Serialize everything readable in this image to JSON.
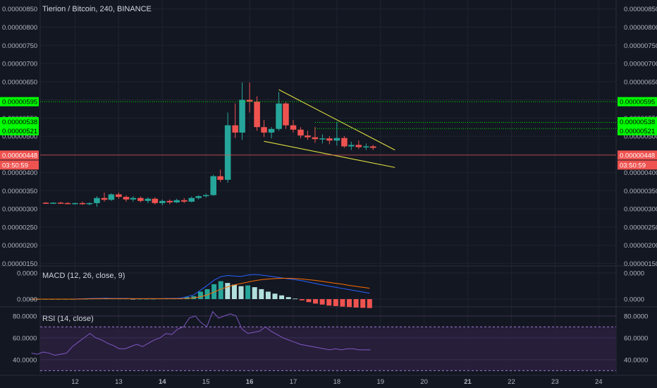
{
  "header": {
    "title": "Tierion / Bitcoin, 240, BINANCE"
  },
  "colors": {
    "background": "#131722",
    "grid": "#1f2330",
    "bullish": "#26a69a",
    "bearish": "#ef5350",
    "wedge": "#e0e040",
    "level_line": "#00e600",
    "level_tag": "#00ff00",
    "price_tag": "#ef5350",
    "macd_line": "#2962ff",
    "signal_line": "#ff6d00",
    "rsi_line": "#7e57c2",
    "rsi_band": "#2a1f3d"
  },
  "tags": {
    "levels": [
      "0.00000595",
      "0.00000538",
      "0.00000521"
    ],
    "price": "0.00000448",
    "countdown": "03:50:59"
  },
  "chart_data": [
    {
      "type": "candlestick",
      "title": "Tierion / Bitcoin, 240, BINANCE",
      "x_ticks": [
        "12",
        "13",
        "14",
        "15",
        "16",
        "17",
        "18",
        "19",
        "20",
        "21",
        "22",
        "23",
        "24"
      ],
      "y_ticks": [
        "0.00000850",
        "0.00000800",
        "0.00000750",
        "0.00000700",
        "0.00000650",
        "0.00000600",
        "0.00000550",
        "0.00000500",
        "0.00000450",
        "0.00000400",
        "0.00000350",
        "0.00000300",
        "0.00000250",
        "0.00000200",
        "0.00000150"
      ],
      "ylim": [
        1.45e-06,
        8.65e-06
      ],
      "x_range_days": [
        11.2,
        24.4
      ],
      "horizontal_levels": [
        5.95e-06,
        5.38e-06,
        5.21e-06
      ],
      "last_price": 4.48e-06,
      "ohlc": [
        {
          "t": 11.33,
          "o": 3.17e-06,
          "h": 3.19e-06,
          "l": 3.14e-06,
          "c": 3.16e-06
        },
        {
          "t": 11.5,
          "o": 3.16e-06,
          "h": 3.18e-06,
          "l": 3.14e-06,
          "c": 3.17e-06
        },
        {
          "t": 11.67,
          "o": 3.17e-06,
          "h": 3.2e-06,
          "l": 3.15e-06,
          "c": 3.16e-06
        },
        {
          "t": 11.83,
          "o": 3.16e-06,
          "h": 3.19e-06,
          "l": 3.13e-06,
          "c": 3.14e-06
        },
        {
          "t": 12.0,
          "o": 3.14e-06,
          "h": 3.17e-06,
          "l": 3.12e-06,
          "c": 3.16e-06
        },
        {
          "t": 12.17,
          "o": 3.16e-06,
          "h": 3.2e-06,
          "l": 3.11e-06,
          "c": 3.13e-06
        },
        {
          "t": 12.33,
          "o": 3.13e-06,
          "h": 3.18e-06,
          "l": 3.1e-06,
          "c": 3.16e-06
        },
        {
          "t": 12.5,
          "o": 3.16e-06,
          "h": 3.35e-06,
          "l": 3.06e-06,
          "c": 3.3e-06
        },
        {
          "t": 12.67,
          "o": 3.3e-06,
          "h": 3.45e-06,
          "l": 3.2e-06,
          "c": 3.25e-06
        },
        {
          "t": 12.83,
          "o": 3.25e-06,
          "h": 3.43e-06,
          "l": 3.22e-06,
          "c": 3.4e-06
        },
        {
          "t": 13.0,
          "o": 3.4e-06,
          "h": 3.45e-06,
          "l": 3.28e-06,
          "c": 3.33e-06
        },
        {
          "t": 13.17,
          "o": 3.33e-06,
          "h": 3.37e-06,
          "l": 3.2e-06,
          "c": 3.26e-06
        },
        {
          "t": 13.33,
          "o": 3.26e-06,
          "h": 3.35e-06,
          "l": 3.2e-06,
          "c": 3.3e-06
        },
        {
          "t": 13.5,
          "o": 3.3e-06,
          "h": 3.34e-06,
          "l": 3.18e-06,
          "c": 3.22e-06
        },
        {
          "t": 13.67,
          "o": 3.22e-06,
          "h": 3.32e-06,
          "l": 3.16e-06,
          "c": 3.28e-06
        },
        {
          "t": 13.83,
          "o": 3.28e-06,
          "h": 3.32e-06,
          "l": 3.12e-06,
          "c": 3.16e-06
        },
        {
          "t": 14.0,
          "o": 3.16e-06,
          "h": 3.26e-06,
          "l": 3.1e-06,
          "c": 3.22e-06
        },
        {
          "t": 14.17,
          "o": 3.22e-06,
          "h": 3.26e-06,
          "l": 3.13e-06,
          "c": 3.18e-06
        },
        {
          "t": 14.33,
          "o": 3.18e-06,
          "h": 3.28e-06,
          "l": 3.16e-06,
          "c": 3.24e-06
        },
        {
          "t": 14.5,
          "o": 3.24e-06,
          "h": 3.3e-06,
          "l": 3.16e-06,
          "c": 3.2e-06
        },
        {
          "t": 14.67,
          "o": 3.2e-06,
          "h": 3.34e-06,
          "l": 3.18e-06,
          "c": 3.3e-06
        },
        {
          "t": 14.83,
          "o": 3.3e-06,
          "h": 3.38e-06,
          "l": 3.26e-06,
          "c": 3.35e-06
        },
        {
          "t": 15.0,
          "o": 3.35e-06,
          "h": 3.42e-06,
          "l": 3.31e-06,
          "c": 3.38e-06
        },
        {
          "t": 15.17,
          "o": 3.38e-06,
          "h": 3.94e-06,
          "l": 3.36e-06,
          "c": 3.9e-06
        },
        {
          "t": 15.33,
          "o": 3.9e-06,
          "h": 4.08e-06,
          "l": 3.74e-06,
          "c": 3.8e-06
        },
        {
          "t": 15.5,
          "o": 3.8e-06,
          "h": 5.65e-06,
          "l": 3.72e-06,
          "c": 5.3e-06
        },
        {
          "t": 15.67,
          "o": 5.3e-06,
          "h": 5.9e-06,
          "l": 4.95e-06,
          "c": 5.1e-06
        },
        {
          "t": 15.83,
          "o": 5.1e-06,
          "h": 6.48e-06,
          "l": 4.9e-06,
          "c": 6e-06
        },
        {
          "t": 16.0,
          "o": 6e-06,
          "h": 6.48e-06,
          "l": 5.65e-06,
          "c": 5.95e-06
        },
        {
          "t": 16.17,
          "o": 5.95e-06,
          "h": 6.1e-06,
          "l": 5.15e-06,
          "c": 5.25e-06
        },
        {
          "t": 16.33,
          "o": 5.25e-06,
          "h": 5.45e-06,
          "l": 4.98e-06,
          "c": 5.1e-06
        },
        {
          "t": 16.5,
          "o": 5.1e-06,
          "h": 5.25e-06,
          "l": 4.94e-06,
          "c": 5.2e-06
        },
        {
          "t": 16.67,
          "o": 5.2e-06,
          "h": 6.22e-06,
          "l": 5.15e-06,
          "c": 5.9e-06
        },
        {
          "t": 16.83,
          "o": 5.9e-06,
          "h": 5.95e-06,
          "l": 5.2e-06,
          "c": 5.3e-06
        },
        {
          "t": 17.0,
          "o": 5.3e-06,
          "h": 5.45e-06,
          "l": 5.1e-06,
          "c": 5.18e-06
        },
        {
          "t": 17.17,
          "o": 5.18e-06,
          "h": 5.25e-06,
          "l": 4.95e-06,
          "c": 5.02e-06
        },
        {
          "t": 17.33,
          "o": 5.02e-06,
          "h": 5.15e-06,
          "l": 4.9e-06,
          "c": 4.97e-06
        },
        {
          "t": 17.5,
          "o": 4.97e-06,
          "h": 5.25e-06,
          "l": 4.82e-06,
          "c": 4.92e-06
        },
        {
          "t": 17.67,
          "o": 4.92e-06,
          "h": 5.05e-06,
          "l": 4.8e-06,
          "c": 4.94e-06
        },
        {
          "t": 17.83,
          "o": 4.94e-06,
          "h": 5e-06,
          "l": 4.78e-06,
          "c": 4.88e-06
        },
        {
          "t": 18.0,
          "o": 4.88e-06,
          "h": 5.4e-06,
          "l": 4.74e-06,
          "c": 4.95e-06
        },
        {
          "t": 18.17,
          "o": 4.95e-06,
          "h": 5e-06,
          "l": 4.68e-06,
          "c": 4.72e-06
        },
        {
          "t": 18.33,
          "o": 4.72e-06,
          "h": 4.85e-06,
          "l": 4.62e-06,
          "c": 4.76e-06
        },
        {
          "t": 18.5,
          "o": 4.76e-06,
          "h": 4.88e-06,
          "l": 4.65e-06,
          "c": 4.7e-06
        },
        {
          "t": 18.67,
          "o": 4.7e-06,
          "h": 4.8e-06,
          "l": 4.62e-06,
          "c": 4.72e-06
        },
        {
          "t": 18.83,
          "o": 4.72e-06,
          "h": 4.76e-06,
          "l": 4.62e-06,
          "c": 4.68e-06
        }
      ],
      "wedge": {
        "upper": [
          [
            16.67,
            6.28e-06
          ],
          [
            19.33,
            4.62e-06
          ]
        ],
        "lower": [
          [
            16.33,
            4.86e-06
          ],
          [
            19.33,
            4.14e-06
          ]
        ]
      }
    },
    {
      "type": "line",
      "title": "MACD (12, 26, close, 9)",
      "y_ticks": [
        "0.0000",
        "0.0000"
      ],
      "histogram": [
        0,
        0,
        0,
        0,
        0,
        0,
        0,
        0.01,
        0.01,
        0.02,
        0.02,
        0.02,
        0.02,
        0.02,
        0.02,
        0.01,
        0.01,
        0.01,
        0.01,
        0.02,
        0.02,
        0.02,
        0.03,
        0.08,
        0.12,
        0.3,
        0.4,
        0.6,
        0.72,
        0.65,
        0.58,
        0.52,
        0.55,
        0.48,
        0.4,
        0.3,
        0.22,
        0.15,
        0.08,
        0.02,
        -0.05,
        -0.12,
        -0.18,
        -0.22,
        -0.26,
        -0.28,
        -0.3,
        -0.32,
        -0.34,
        -0.35,
        -0.36
      ],
      "macd": [
        0,
        0,
        0,
        0,
        0,
        0,
        0,
        0.01,
        0.02,
        0.03,
        0.03,
        0.04,
        0.03,
        0.03,
        0.03,
        0.02,
        0.02,
        0.02,
        0.02,
        0.02,
        0.03,
        0.03,
        0.04,
        0.1,
        0.18,
        0.38,
        0.58,
        0.8,
        0.95,
        1.0,
        0.98,
        0.96,
        1.02,
        1.04,
        1.02,
        0.98,
        0.94,
        0.9,
        0.86,
        0.82,
        0.78,
        0.72,
        0.66,
        0.6,
        0.55,
        0.5,
        0.45,
        0.4,
        0.35,
        0.3,
        0.25
      ],
      "signal": [
        0,
        0,
        0,
        0,
        0,
        0,
        0,
        0,
        0.01,
        0.01,
        0.02,
        0.02,
        0.02,
        0.02,
        0.02,
        0.02,
        0.02,
        0.02,
        0.02,
        0.02,
        0.02,
        0.02,
        0.02,
        0.03,
        0.05,
        0.1,
        0.18,
        0.3,
        0.42,
        0.52,
        0.6,
        0.66,
        0.72,
        0.78,
        0.82,
        0.85,
        0.87,
        0.88,
        0.88,
        0.87,
        0.85,
        0.82,
        0.79,
        0.75,
        0.71,
        0.67,
        0.63,
        0.58,
        0.54,
        0.5,
        0.46
      ]
    },
    {
      "type": "line",
      "title": "RSI (14, close)",
      "y_ticks": [
        "80.0000",
        "60.0000",
        "40.0000"
      ],
      "ylim": [
        27,
        87
      ],
      "band": [
        30,
        70
      ],
      "values": [
        46,
        45,
        47,
        46,
        44,
        45,
        46,
        52,
        56,
        60,
        64,
        60,
        58,
        55,
        53,
        50,
        50,
        52,
        54,
        52,
        55,
        58,
        60,
        64,
        63,
        68,
        70,
        78,
        80,
        74,
        70,
        84,
        78,
        80,
        82,
        80,
        68,
        64,
        65,
        66,
        70,
        66,
        63,
        60,
        58,
        56,
        54,
        53,
        52,
        51,
        50,
        49,
        50,
        49,
        50,
        50,
        49,
        49,
        49
      ]
    }
  ]
}
